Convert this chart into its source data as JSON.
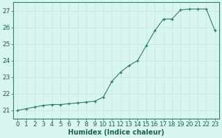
{
  "x": [
    0,
    1,
    2,
    3,
    4,
    5,
    6,
    7,
    8,
    9,
    10,
    11,
    12,
    13,
    14,
    15,
    16,
    17,
    18,
    19,
    20,
    21,
    22,
    23
  ],
  "y": [
    21.0,
    21.1,
    21.2,
    21.3,
    21.35,
    21.35,
    21.4,
    21.45,
    21.5,
    21.55,
    21.8,
    22.75,
    23.3,
    23.7,
    24.0,
    24.9,
    25.8,
    26.5,
    26.5,
    27.05,
    27.1,
    27.1,
    27.1,
    25.8
  ],
  "xlabel": "Humidex (Indice chaleur)",
  "ylim": [
    20.5,
    27.5
  ],
  "xlim": [
    -0.5,
    23.5
  ],
  "yticks": [
    21,
    22,
    23,
    24,
    25,
    26,
    27
  ],
  "xticks": [
    0,
    1,
    2,
    3,
    4,
    5,
    6,
    7,
    8,
    9,
    10,
    11,
    12,
    13,
    14,
    15,
    16,
    17,
    18,
    19,
    20,
    21,
    22,
    23
  ],
  "line_color": "#2a7a6a",
  "marker": "+",
  "bg_color": "#d8f5f0",
  "grid_color": "#c0e8e0",
  "axis_color": "#2a7a6a",
  "label_color": "#1a5f52",
  "tick_color": "#1a5f52",
  "font_size_xlabel": 7.0,
  "font_size_ticks": 6.5
}
